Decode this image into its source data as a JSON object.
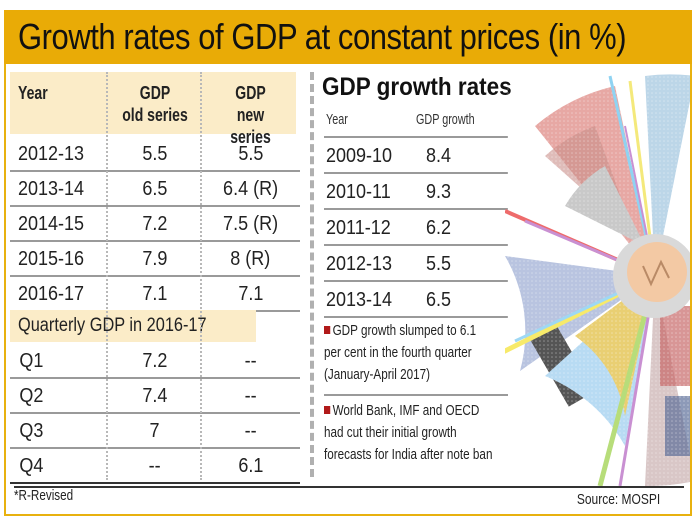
{
  "title": "Growth rates of GDP at constant prices (in %)",
  "colors": {
    "title_bg": "#e9ab06",
    "header_bg": "#fbecc8",
    "bullet": "#b11a1a"
  },
  "left_table": {
    "headers": [
      {
        "line1": "Year",
        "line2": ""
      },
      {
        "line1": "GDP",
        "line2": "old series"
      },
      {
        "line1": "GDP",
        "line2": "new series"
      }
    ],
    "rows": [
      {
        "year": "2012-13",
        "old": "5.5",
        "new": "5.5"
      },
      {
        "year": "2013-14",
        "old": "6.5",
        "new": "6.4 (R)"
      },
      {
        "year": "2014-15",
        "old": "7.2",
        "new": "7.5 (R)"
      },
      {
        "year": "2015-16",
        "old": "7.9",
        "new": "8 (R)"
      },
      {
        "year": "2016-17",
        "old": "7.1",
        "new": "7.1"
      }
    ]
  },
  "quarterly": {
    "title": "Quarterly GDP in 2016-17",
    "rows": [
      {
        "quarter": "Q1",
        "old": "7.2",
        "new": "--"
      },
      {
        "quarter": "Q2",
        "old": "7.4",
        "new": "--"
      },
      {
        "quarter": "Q3",
        "old": "7",
        "new": "--"
      },
      {
        "quarter": "Q4",
        "old": "--",
        "new": "6.1"
      }
    ]
  },
  "footnote": "*R-Revised",
  "right_table": {
    "title": "GDP growth rates",
    "headers": [
      "Year",
      "GDP growth"
    ],
    "rows": [
      {
        "year": "2009-10",
        "growth": "8.4"
      },
      {
        "year": "2010-11",
        "growth": "9.3"
      },
      {
        "year": "2011-12",
        "growth": "6.2"
      },
      {
        "year": "2012-13",
        "growth": "5.5"
      },
      {
        "year": "2013-14",
        "growth": "6.5"
      }
    ]
  },
  "notes": [
    {
      "lines": [
        "GDP growth slumped to 6.1",
        "per cent in the fourth quarter",
        "(January-April 2017)"
      ]
    },
    {
      "lines": [
        "World Bank, IMF and OECD",
        "had cut their initial growth",
        "forecasts for India after note ban"
      ]
    }
  ],
  "source": "Source: MOSPI",
  "collage_icons": [
    "economy-collage-image",
    "coin-icon",
    "handshake-image",
    "factory-image",
    "harvest-image",
    "containers-image"
  ]
}
